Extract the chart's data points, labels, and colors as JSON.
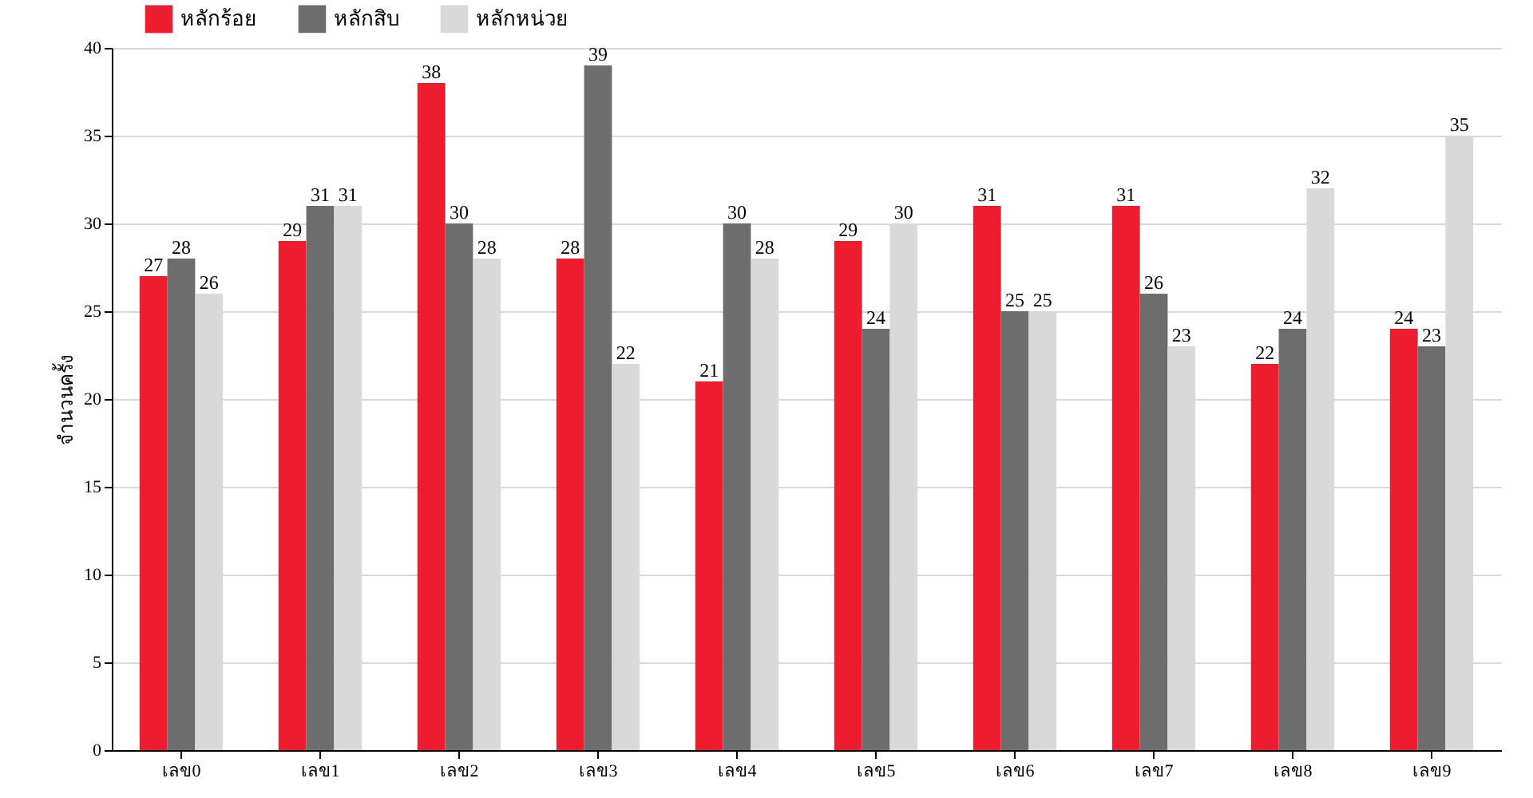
{
  "chart_data": {
    "type": "bar",
    "ylabel": "จำนวนครั้ง",
    "categories": [
      "เลข0",
      "เลข1",
      "เลข2",
      "เลข3",
      "เลข4",
      "เลข5",
      "เลข6",
      "เลข7",
      "เลข8",
      "เลข9"
    ],
    "series": [
      {
        "name": "หลักร้อย",
        "color": "#ed1c2e",
        "values": [
          27,
          29,
          38,
          28,
          21,
          29,
          31,
          31,
          22,
          24
        ]
      },
      {
        "name": "หลักสิบ",
        "color": "#6d6d6d",
        "values": [
          28,
          31,
          30,
          39,
          30,
          24,
          25,
          26,
          24,
          23
        ]
      },
      {
        "name": "หลักหน่วย",
        "color": "#d9d9d9",
        "values": [
          26,
          31,
          28,
          22,
          28,
          30,
          25,
          23,
          32,
          35
        ]
      }
    ],
    "ylim": [
      0,
      40
    ],
    "yticks": [
      0,
      5,
      10,
      15,
      20,
      25,
      30,
      35,
      40
    ],
    "grid": true,
    "legend": "top left",
    "data_labels": true
  }
}
